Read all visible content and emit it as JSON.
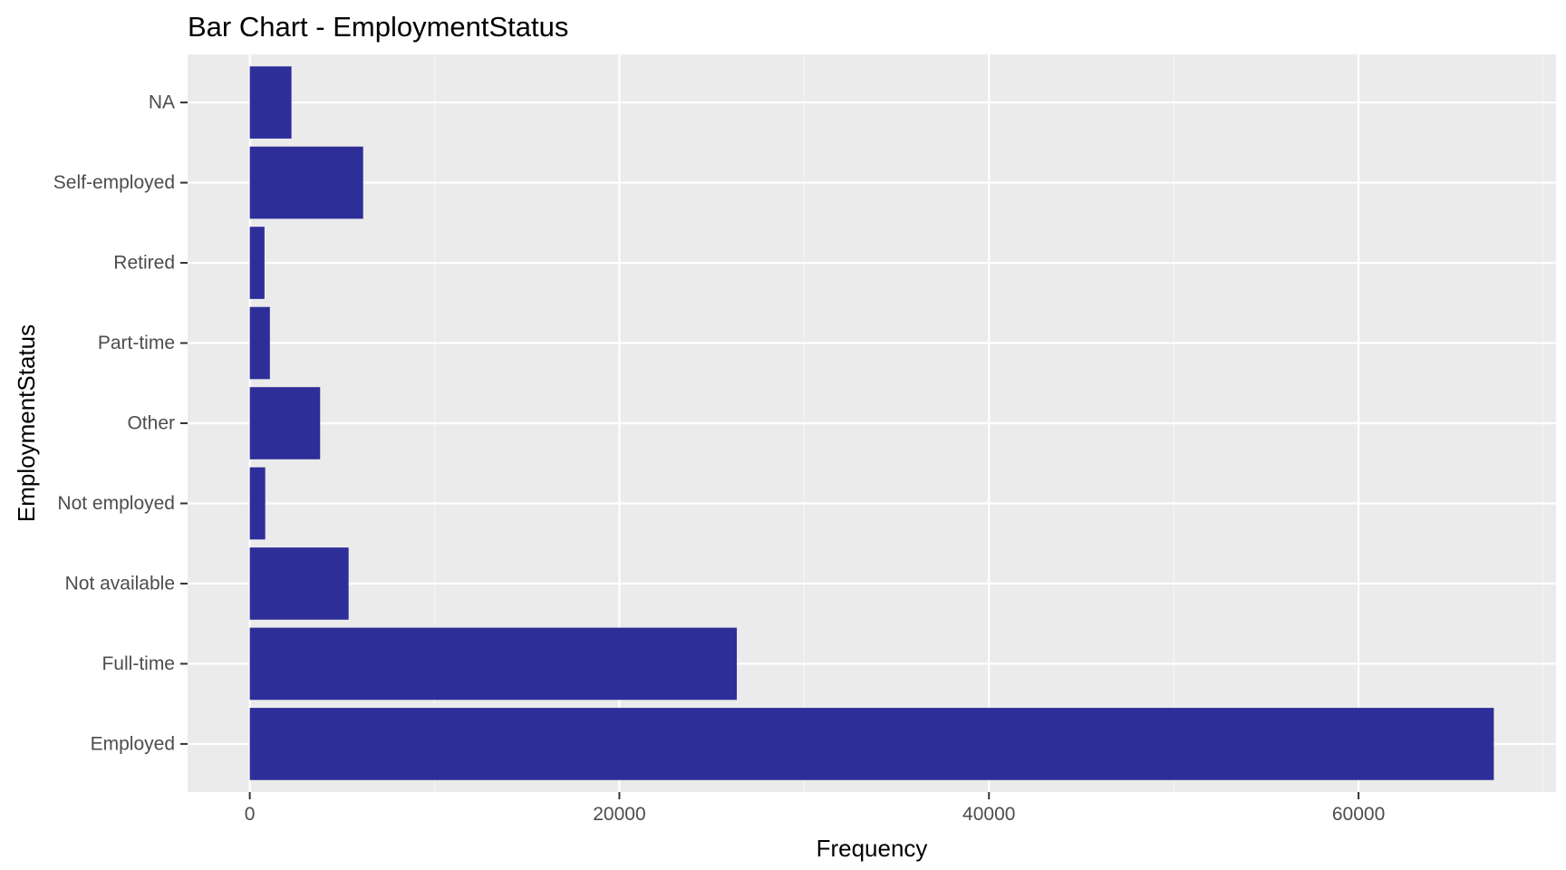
{
  "chart_data": {
    "type": "bar",
    "orientation": "horizontal",
    "title": "Bar Chart - EmploymentStatus",
    "xlabel": "Frequency",
    "ylabel": "EmploymentStatus",
    "categories": [
      "Employed",
      "Full-time",
      "Not available",
      "Not employed",
      "Other",
      "Part-time",
      "Retired",
      "Self-employed",
      "NA"
    ],
    "values": [
      67322,
      26355,
      5347,
      835,
      3806,
      1088,
      795,
      6134,
      2255
    ],
    "x_ticks": [
      0,
      20000,
      40000,
      60000
    ],
    "x_tick_labels": [
      "0",
      "20000",
      "40000",
      "60000"
    ],
    "xlim": [
      -3366,
      70688
    ],
    "grid": true,
    "legend": "none",
    "colors": {
      "bar": "#2e2e99",
      "panel": "#ebebeb",
      "grid_major": "#ffffff",
      "grid_minor": "#f5f5f5",
      "tick": "#333333",
      "tick_label": "#4d4d4d"
    }
  }
}
